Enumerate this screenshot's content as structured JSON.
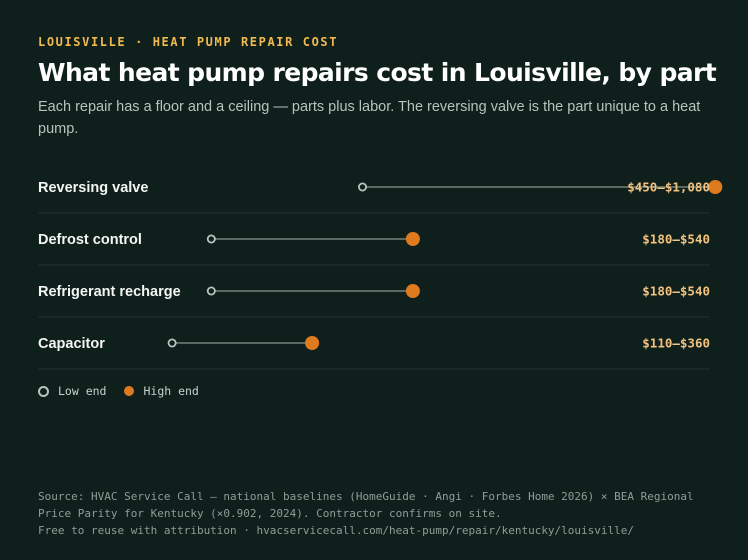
{
  "header": {
    "eyebrow": "LOUISVILLE · HEAT PUMP REPAIR COST",
    "title": "What heat pump repairs cost in Louisville, by part",
    "subtitle": "Each repair has a floor and a ceiling — parts plus labor. The reversing valve is the part unique to a heat pump."
  },
  "colors": {
    "background": "#0f1f1b",
    "low_marker": "#b9c4bf",
    "high_marker": "#e07a1f",
    "connector": "#5b6963",
    "value_label": "#f2c27e",
    "eyebrow": "#f2b950"
  },
  "chart_data": {
    "type": "range-dot",
    "unit": "USD",
    "x_range": [
      0,
      1200
    ],
    "grid": false,
    "categories": [
      "Reversing valve",
      "Defrost control",
      "Refrigerant recharge",
      "Capacitor"
    ],
    "series": [
      {
        "name": "Low end",
        "values": [
          450,
          180,
          180,
          110
        ]
      },
      {
        "name": "High end",
        "values": [
          1080,
          540,
          540,
          360
        ]
      }
    ],
    "value_labels": [
      "$450–$1,080",
      "$180–$540",
      "$180–$540",
      "$110–$360"
    ]
  },
  "legend": {
    "low_label": "Low end",
    "high_label": "High end"
  },
  "source": {
    "line1": "Source: HVAC Service Call — national baselines (HomeGuide · Angi · Forbes Home 2026) × BEA Regional",
    "line2": "Price Parity for Kentucky (×0.902, 2024). Contractor confirms on site.",
    "line3": "Free to reuse with attribution · hvacservicecall.com/heat-pump/repair/kentucky/louisville/"
  }
}
